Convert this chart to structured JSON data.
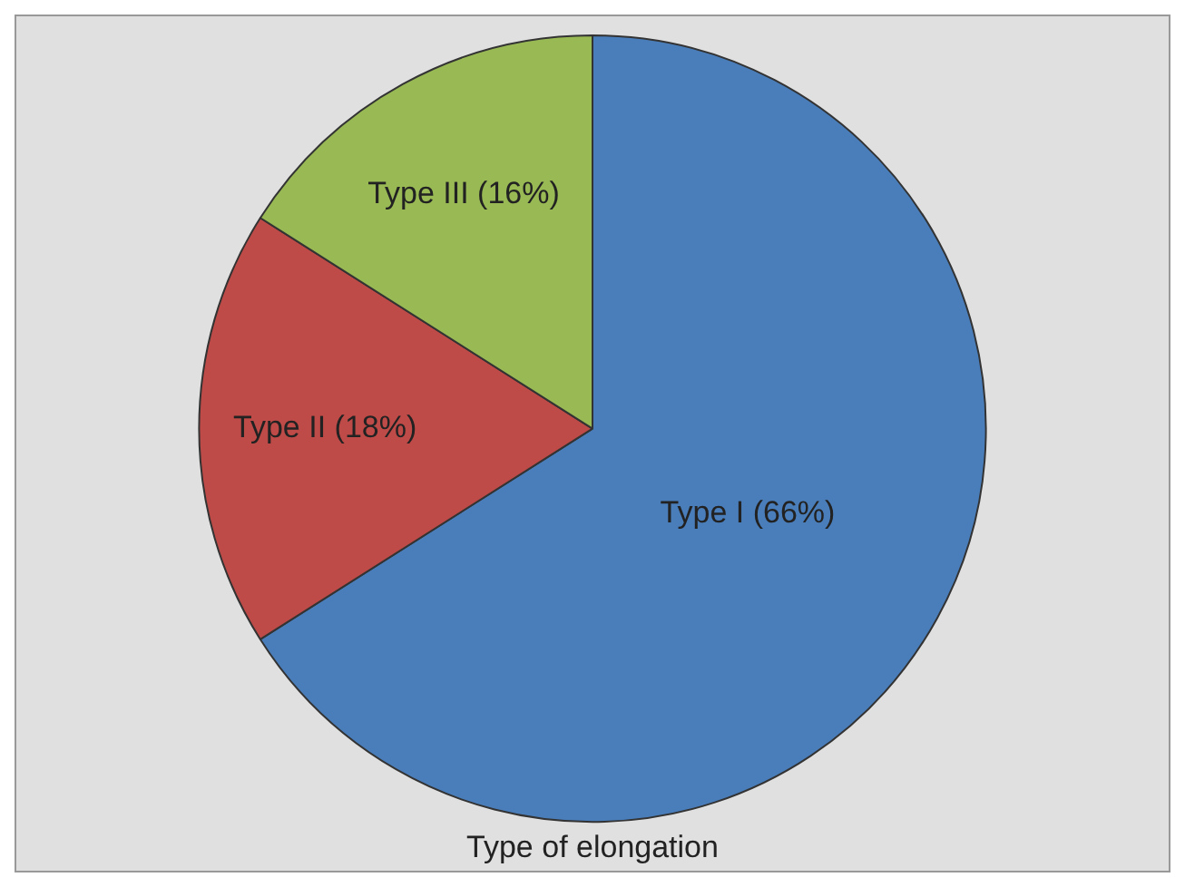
{
  "chart_data": {
    "type": "pie",
    "xlabel": "Type of elongation",
    "categories": [
      "Type I (66%)",
      "Type II (18%)",
      "Type III (16%)"
    ],
    "values": [
      66,
      18,
      16
    ],
    "colors": [
      "#4a7ebb",
      "#be4b48",
      "#98b954"
    ],
    "legend": false
  }
}
